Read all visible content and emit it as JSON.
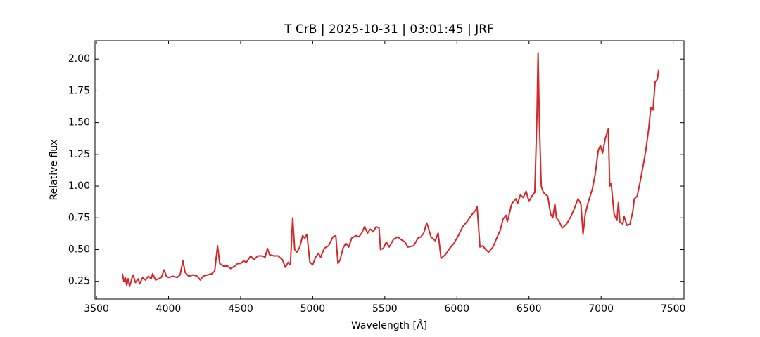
{
  "chart_data": {
    "type": "line",
    "title": "T CrB | 2025-10-31 | 03:01:45 | JRF",
    "x_label": "Wavelength [Å]",
    "y_label": "Relative flux",
    "color": "#d62728",
    "xlim": [
      3490,
      7575
    ],
    "ylim": [
      0.11,
      2.145
    ],
    "xticks": [
      3500,
      4000,
      4500,
      5000,
      5500,
      6000,
      6500,
      7000,
      7500
    ],
    "yticks": [
      0.25,
      {
        "value": 0.5,
        "label": "0.50"
      },
      0.75,
      {
        "value": 1.0,
        "label": "1.00"
      },
      1.25,
      {
        "value": 1.5,
        "label": "1.50"
      },
      1.75,
      {
        "value": 2.0,
        "label": "2.00"
      }
    ],
    "x": [
      3680,
      3690,
      3700,
      3710,
      3720,
      3730,
      3745,
      3755,
      3770,
      3790,
      3800,
      3820,
      3840,
      3860,
      3880,
      3890,
      3910,
      3930,
      3950,
      3970,
      3985,
      4000,
      4030,
      4060,
      4080,
      4100,
      4115,
      4140,
      4170,
      4200,
      4220,
      4240,
      4270,
      4300,
      4320,
      4340,
      4355,
      4380,
      4410,
      4430,
      4460,
      4480,
      4500,
      4520,
      4540,
      4570,
      4590,
      4620,
      4650,
      4670,
      4686,
      4700,
      4730,
      4760,
      4790,
      4810,
      4830,
      4845,
      4861,
      4875,
      4890,
      4910,
      4930,
      4945,
      4960,
      4980,
      5000,
      5020,
      5040,
      5055,
      5080,
      5110,
      5140,
      5160,
      5175,
      5190,
      5210,
      5230,
      5250,
      5270,
      5300,
      5320,
      5340,
      5360,
      5380,
      5400,
      5420,
      5440,
      5460,
      5470,
      5490,
      5510,
      5530,
      5560,
      5590,
      5610,
      5640,
      5660,
      5700,
      5730,
      5750,
      5770,
      5790,
      5800,
      5820,
      5850,
      5870,
      5890,
      5920,
      5950,
      5980,
      6010,
      6040,
      6070,
      6100,
      6130,
      6140,
      6160,
      6180,
      6200,
      6220,
      6250,
      6280,
      6300,
      6320,
      6340,
      6350,
      6380,
      6410,
      6420,
      6440,
      6460,
      6480,
      6500,
      6520,
      6540,
      6555,
      6563,
      6572,
      6585,
      6600,
      6630,
      6650,
      6665,
      6680,
      6690,
      6710,
      6730,
      6760,
      6790,
      6810,
      6840,
      6860,
      6875,
      6890,
      6910,
      6940,
      6960,
      6980,
      6995,
      7010,
      7030,
      7050,
      7060,
      7070,
      7090,
      7110,
      7120,
      7130,
      7150,
      7160,
      7180,
      7200,
      7220,
      7230,
      7250,
      7270,
      7290,
      7310,
      7330,
      7345,
      7360,
      7375,
      7390,
      7400
    ],
    "values": [
      0.31,
      0.25,
      0.28,
      0.22,
      0.27,
      0.21,
      0.27,
      0.3,
      0.24,
      0.27,
      0.23,
      0.28,
      0.26,
      0.29,
      0.27,
      0.31,
      0.26,
      0.27,
      0.28,
      0.34,
      0.29,
      0.28,
      0.29,
      0.28,
      0.3,
      0.41,
      0.32,
      0.29,
      0.3,
      0.29,
      0.26,
      0.29,
      0.3,
      0.31,
      0.33,
      0.53,
      0.39,
      0.37,
      0.37,
      0.35,
      0.37,
      0.39,
      0.39,
      0.41,
      0.4,
      0.45,
      0.42,
      0.45,
      0.45,
      0.44,
      0.51,
      0.46,
      0.45,
      0.45,
      0.42,
      0.36,
      0.4,
      0.38,
      0.75,
      0.5,
      0.48,
      0.52,
      0.61,
      0.59,
      0.62,
      0.4,
      0.38,
      0.44,
      0.47,
      0.44,
      0.51,
      0.53,
      0.6,
      0.61,
      0.39,
      0.42,
      0.51,
      0.55,
      0.52,
      0.59,
      0.61,
      0.6,
      0.63,
      0.68,
      0.63,
      0.66,
      0.64,
      0.68,
      0.67,
      0.5,
      0.51,
      0.56,
      0.52,
      0.58,
      0.6,
      0.58,
      0.56,
      0.52,
      0.53,
      0.59,
      0.6,
      0.63,
      0.71,
      0.68,
      0.6,
      0.57,
      0.63,
      0.43,
      0.46,
      0.51,
      0.55,
      0.61,
      0.68,
      0.72,
      0.77,
      0.81,
      0.84,
      0.52,
      0.53,
      0.5,
      0.48,
      0.52,
      0.6,
      0.65,
      0.74,
      0.77,
      0.72,
      0.86,
      0.9,
      0.86,
      0.93,
      0.91,
      0.96,
      0.88,
      0.92,
      0.95,
      1.55,
      2.05,
      1.5,
      1.0,
      0.95,
      0.92,
      0.78,
      0.75,
      0.86,
      0.75,
      0.72,
      0.67,
      0.7,
      0.76,
      0.81,
      0.9,
      0.86,
      0.62,
      0.78,
      0.87,
      0.98,
      1.1,
      1.28,
      1.32,
      1.26,
      1.38,
      1.45,
      1.0,
      1.02,
      0.78,
      0.73,
      0.87,
      0.72,
      0.7,
      0.76,
      0.69,
      0.7,
      0.8,
      0.9,
      0.92,
      1.03,
      1.15,
      1.28,
      1.45,
      1.62,
      1.6,
      1.82,
      1.84,
      1.92
    ]
  }
}
